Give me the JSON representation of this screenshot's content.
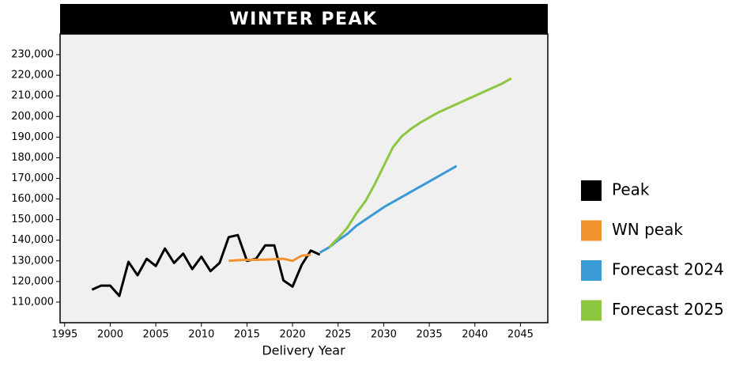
{
  "chart_data": {
    "type": "line",
    "title": "WINTER PEAK",
    "x_label": "Delivery Year",
    "xlim": [
      1994.5,
      2048
    ],
    "xticks": [
      1995,
      2000,
      2005,
      2010,
      2015,
      2020,
      2025,
      2030,
      2035,
      2040,
      2045
    ],
    "ylim": [
      100000,
      240000
    ],
    "yticks": [
      {
        "value": 110000,
        "label": "110,000"
      },
      {
        "value": 120000,
        "label": "120,000"
      },
      {
        "value": 130000,
        "label": "130,000"
      },
      {
        "value": 140000,
        "label": "140,000"
      },
      {
        "value": 150000,
        "label": "150,000"
      },
      {
        "value": 160000,
        "label": "160,000"
      },
      {
        "value": 170000,
        "label": "170,000"
      },
      {
        "value": 180000,
        "label": "180,000"
      },
      {
        "value": 190000,
        "label": "190,000"
      },
      {
        "value": 200000,
        "label": "200,000"
      },
      {
        "value": 210000,
        "label": "210,000"
      },
      {
        "value": 220000,
        "label": "220,000"
      },
      {
        "value": 230000,
        "label": "230,000"
      }
    ],
    "legend": "right",
    "series": [
      {
        "name": "Peak",
        "color": "#000000",
        "x": [
          1998,
          1999,
          2000,
          2001,
          2002,
          2003,
          2004,
          2005,
          2006,
          2007,
          2008,
          2009,
          2010,
          2011,
          2012,
          2013,
          2014,
          2015,
          2016,
          2017,
          2018,
          2019,
          2020,
          2021,
          2022,
          2023
        ],
        "values": [
          116000,
          118000,
          118000,
          113000,
          129500,
          123000,
          131000,
          127500,
          136000,
          129000,
          133500,
          126000,
          132000,
          125000,
          129000,
          141500,
          142500,
          130000,
          131000,
          137500,
          137500,
          120500,
          117500,
          128000,
          135000,
          133000
        ]
      },
      {
        "name": "WN peak",
        "color": "#f0932f",
        "x": [
          2013,
          2014,
          2015,
          2016,
          2017,
          2018,
          2019,
          2020,
          2021,
          2022
        ],
        "values": [
          130000,
          130300,
          130500,
          130500,
          130600,
          130800,
          131000,
          130000,
          132500,
          133000
        ]
      },
      {
        "name": "Forecast 2024",
        "color": "#3a9ad6",
        "x": [
          2023,
          2024,
          2025,
          2026,
          2027,
          2028,
          2029,
          2030,
          2031,
          2032,
          2033,
          2034,
          2035,
          2036,
          2037,
          2038
        ],
        "values": [
          134000,
          136500,
          140000,
          143000,
          147000,
          150000,
          153000,
          156000,
          158500,
          161000,
          163500,
          166000,
          168500,
          171000,
          173500,
          176000
        ]
      },
      {
        "name": "Forecast 2025",
        "color": "#8dc63f",
        "x": [
          2024,
          2025,
          2026,
          2027,
          2028,
          2029,
          2030,
          2031,
          2032,
          2033,
          2034,
          2035,
          2036,
          2037,
          2038,
          2039,
          2040,
          2041,
          2042,
          2043,
          2044
        ],
        "values": [
          136500,
          141000,
          146000,
          153000,
          159000,
          167000,
          176000,
          185000,
          190500,
          194000,
          197000,
          199500,
          202000,
          204000,
          206000,
          208000,
          210000,
          212000,
          214000,
          216000,
          218500
        ]
      }
    ]
  }
}
